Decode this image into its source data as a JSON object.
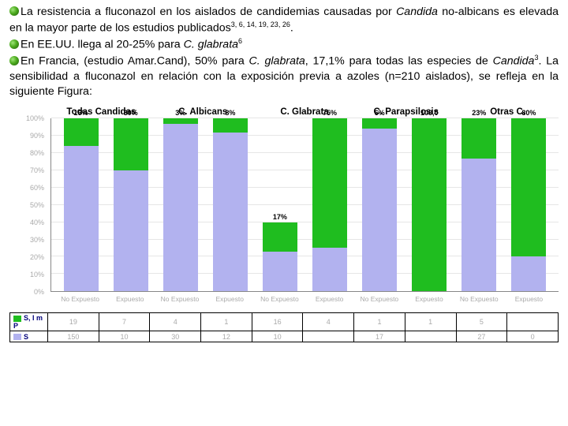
{
  "text": {
    "p1_a": "La resistencia a fluconazol en los aislados de candidemias causadas por ",
    "p1_em1": "Candida",
    "p1_b": " no-albicans es elevada en la mayor parte de los estudios publicados",
    "p1_sup": "3, 6, 14, 19, 23, 26",
    "p1_c": ".",
    "p2_a": "En EE.UU. llega al 20-25% para ",
    "p2_em": "C. glabrata",
    "p2_sup": "6",
    "p3_a": "En Francia, (estudio Amar.Cand), 50% para ",
    "p3_em1": "C. glabrata",
    "p3_b": ", 17,1% para todas las especies de ",
    "p3_em2": "Candida",
    "p3_sup": "3",
    "p3_c": ". La sensibilidad a fluconazol en relación con la exposición previa a azoles (n=210 aislados), se refleja en la siguiente Figura:"
  },
  "chart": {
    "group_headers": [
      "Todas Candidas",
      "C. Albicans",
      "C. Glabrata",
      "C. Parapsilosis",
      "Otras C."
    ],
    "x_labels": [
      "No Expuesto",
      "Expuesto",
      "No Expuesto",
      "Expuesto",
      "No Expuesto",
      "Expuesto",
      "No Expuesto",
      "Expuesto",
      "No Expuesto",
      "Expuesto"
    ],
    "y_ticks": [
      0,
      10,
      20,
      30,
      40,
      50,
      60,
      70,
      80,
      90,
      100
    ],
    "y_suffix": "%",
    "colors": {
      "series_S": "#b2b2ef",
      "series_SIR": "#1fbd1f",
      "grid": "#e6e6e6",
      "axis": "#888888",
      "text_faint": "#aaaaaa",
      "legend_text": "#00007a"
    },
    "bars": [
      {
        "S": 84,
        "SIR": 16,
        "label": "16%"
      },
      {
        "S": 70,
        "SIR": 30,
        "label": "30%"
      },
      {
        "S": 97,
        "SIR": 3,
        "label": "3%"
      },
      {
        "S": 92,
        "SIR": 8,
        "label": "8%"
      },
      {
        "S": 23,
        "SIR": 17,
        "label": "17%",
        "shortS": true
      },
      {
        "S": 25,
        "SIR": 75,
        "label": "75%"
      },
      {
        "S": 94,
        "SIR": 6,
        "label": "6%"
      },
      {
        "S": 0,
        "SIR": 100,
        "label": "100,0"
      },
      {
        "S": 77,
        "SIR": 23,
        "label": "23%"
      },
      {
        "S": 20,
        "SIR": 80,
        "label": "80%"
      }
    ],
    "legend": {
      "rows": [
        {
          "name": "S, I m P",
          "color": "#1fbd1f",
          "values": [
            "19",
            "7",
            "4",
            "1",
            "16",
            "4",
            "1",
            "1",
            "5",
            ""
          ]
        },
        {
          "name": "S",
          "color": "#b2b2ef",
          "values": [
            "150",
            "10",
            "30",
            "12",
            "10",
            "",
            "17",
            "",
            "27",
            "0"
          ]
        }
      ]
    }
  }
}
